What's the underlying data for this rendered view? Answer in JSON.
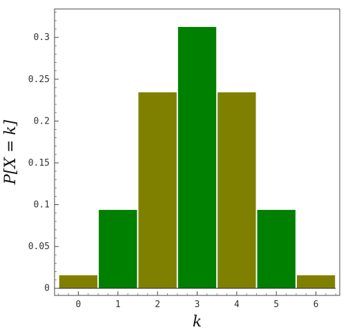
{
  "chart_data": {
    "type": "bar",
    "title": "",
    "xlabel": "k",
    "ylabel": "P[X = k]",
    "categories": [
      "0",
      "1",
      "2",
      "3",
      "4",
      "5",
      "6"
    ],
    "values": [
      0.015625,
      0.09375,
      0.234375,
      0.3125,
      0.234375,
      0.09375,
      0.015625
    ],
    "bar_colors": [
      "#808000",
      "#008000",
      "#808000",
      "#008000",
      "#808000",
      "#008000",
      "#808000"
    ],
    "xlim": [
      -0.6,
      6.6
    ],
    "ylim": [
      -0.0085,
      0.334
    ],
    "yticks": [
      0,
      0.05,
      0.1,
      0.15,
      0.2,
      0.25,
      0.3
    ],
    "ytick_labels": [
      "0",
      "0.05",
      "0.1",
      "0.15",
      "0.2",
      "0.25",
      "0.3"
    ],
    "xticks": [
      0,
      1,
      2,
      3,
      4,
      5,
      6
    ],
    "xtick_labels": [
      "0",
      "1",
      "2",
      "3",
      "4",
      "5",
      "6"
    ],
    "grid": false,
    "legend": "none"
  }
}
